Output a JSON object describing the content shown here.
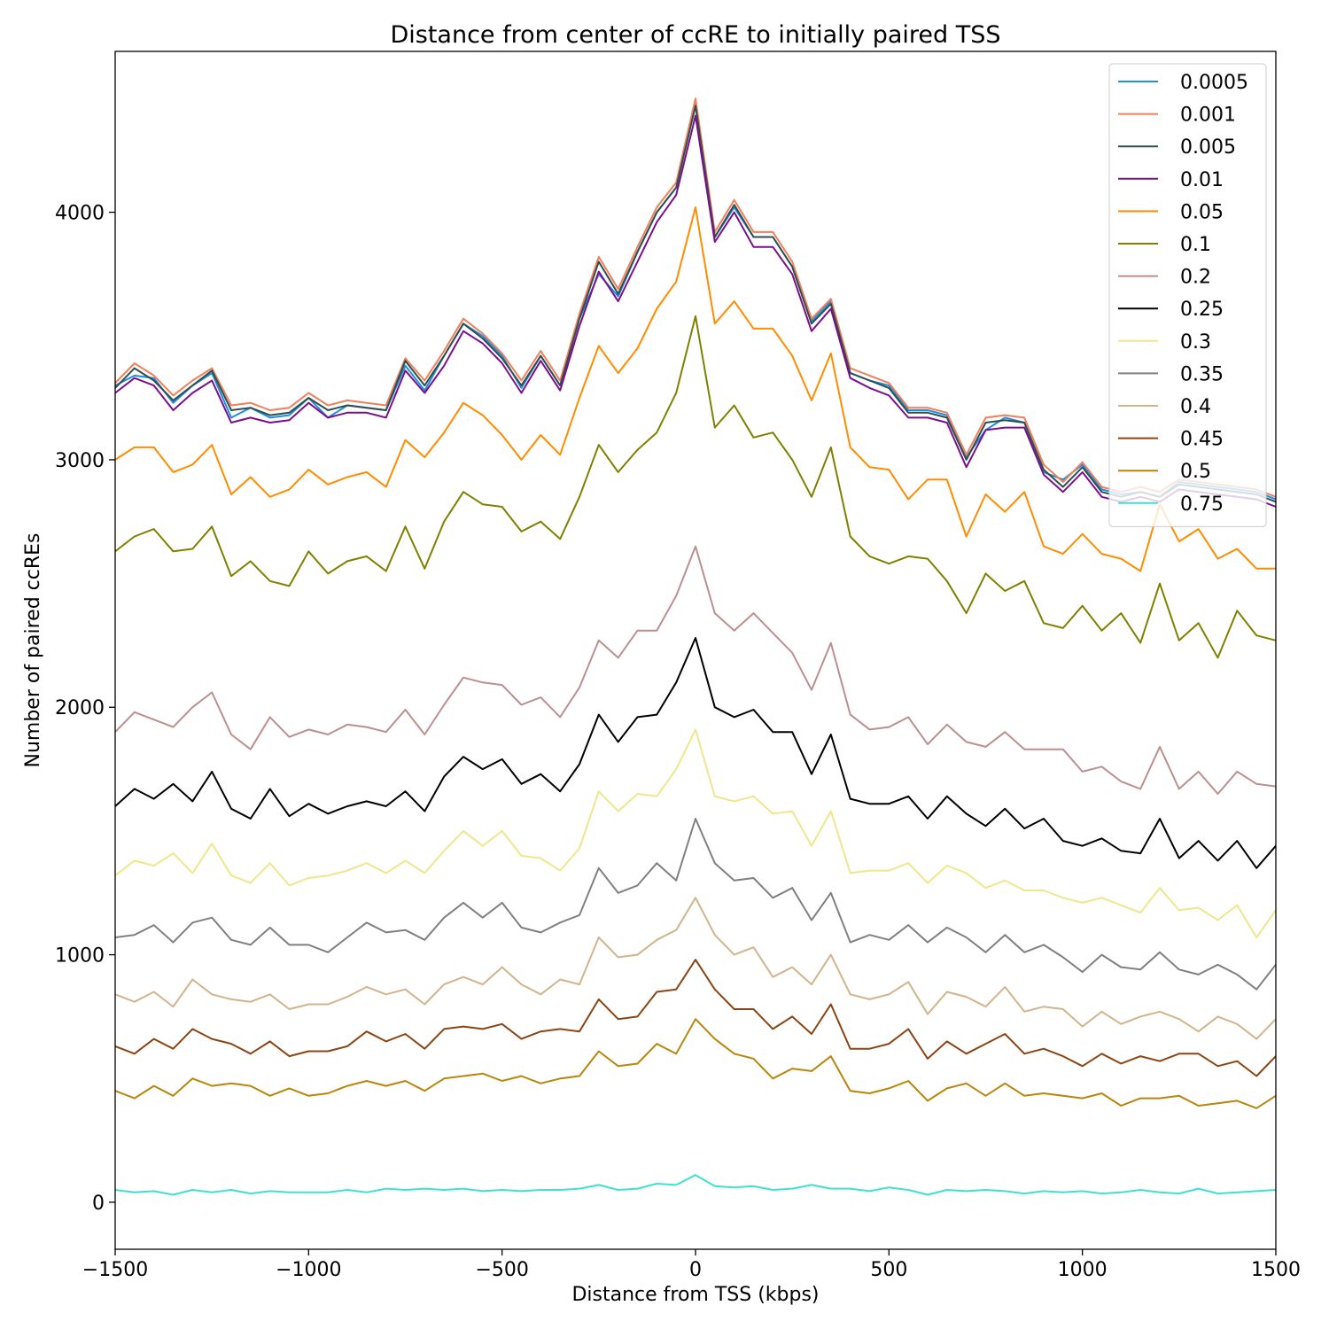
{
  "chart_data": {
    "type": "line",
    "title": "Distance from center of ccRE to initially paired TSS",
    "xlabel": "Distance from TSS (kbps)",
    "ylabel": "Number of paired ccREs",
    "xlim": [
      -1500,
      1500
    ],
    "ylim": [
      -190,
      4650
    ],
    "xticks": [
      -1500,
      -1000,
      -500,
      0,
      500,
      1000,
      1500
    ],
    "xtick_labels": [
      "−1500",
      "−1000",
      "−500",
      "0",
      "500",
      "1000",
      "1500"
    ],
    "yticks": [
      0,
      1000,
      2000,
      3000,
      4000
    ],
    "ytick_labels": [
      "0",
      "1000",
      "2000",
      "3000",
      "4000"
    ],
    "grid": false,
    "legend_position": "top-right",
    "x": [
      -1500,
      -1450,
      -1400,
      -1350,
      -1300,
      -1250,
      -1200,
      -1150,
      -1100,
      -1050,
      -1000,
      -950,
      -900,
      -850,
      -800,
      -750,
      -700,
      -650,
      -600,
      -550,
      -500,
      -450,
      -400,
      -350,
      -300,
      -250,
      -200,
      -150,
      -100,
      -50,
      0,
      50,
      100,
      150,
      200,
      250,
      300,
      350,
      400,
      450,
      500,
      550,
      600,
      650,
      700,
      750,
      800,
      850,
      900,
      950,
      1000,
      1050,
      1100,
      1150,
      1200,
      1250,
      1300,
      1350,
      1400,
      1450,
      1500
    ],
    "series": [
      {
        "name": "0.0005",
        "color": "#1f8fe0",
        "values": [
          3300,
          3340,
          3330,
          3230,
          3300,
          3350,
          3170,
          3210,
          3170,
          3180,
          3250,
          3170,
          3220,
          3210,
          3200,
          3380,
          3280,
          3420,
          3550,
          3500,
          3420,
          3290,
          3420,
          3300,
          3570,
          3750,
          3660,
          3840,
          4000,
          4100,
          4440,
          3900,
          4020,
          3900,
          3900,
          3780,
          3560,
          3640,
          3350,
          3320,
          3300,
          3200,
          3200,
          3180,
          3010,
          3120,
          3170,
          3150,
          2950,
          2920,
          2980,
          2880,
          2860,
          2870,
          2850,
          2910,
          2900,
          2890,
          2880,
          2870,
          2840
        ]
      },
      {
        "name": "0.001",
        "color": "#f07f5a",
        "values": [
          3310,
          3390,
          3340,
          3260,
          3320,
          3370,
          3220,
          3230,
          3200,
          3210,
          3270,
          3220,
          3240,
          3230,
          3220,
          3410,
          3320,
          3440,
          3570,
          3510,
          3430,
          3320,
          3440,
          3320,
          3590,
          3820,
          3690,
          3860,
          4020,
          4120,
          4460,
          3920,
          4050,
          3920,
          3920,
          3800,
          3570,
          3650,
          3370,
          3340,
          3310,
          3210,
          3210,
          3190,
          3020,
          3170,
          3180,
          3170,
          2980,
          2910,
          2990,
          2890,
          2870,
          2890,
          2870,
          2920,
          2910,
          2900,
          2890,
          2880,
          2850
        ]
      },
      {
        "name": "0.005",
        "color": "#2f4f4f",
        "values": [
          3290,
          3370,
          3320,
          3240,
          3300,
          3360,
          3200,
          3210,
          3180,
          3190,
          3250,
          3200,
          3220,
          3210,
          3200,
          3400,
          3300,
          3420,
          3550,
          3490,
          3410,
          3300,
          3420,
          3300,
          3570,
          3800,
          3670,
          3840,
          4000,
          4100,
          4430,
          3900,
          4030,
          3900,
          3900,
          3780,
          3550,
          3630,
          3350,
          3320,
          3290,
          3190,
          3190,
          3170,
          3000,
          3150,
          3160,
          3150,
          2960,
          2890,
          2970,
          2870,
          2850,
          2870,
          2850,
          2900,
          2890,
          2880,
          2870,
          2860,
          2830
        ]
      },
      {
        "name": "0.01",
        "color": "#7b0f8c",
        "values": [
          3270,
          3330,
          3300,
          3200,
          3270,
          3320,
          3150,
          3170,
          3150,
          3160,
          3230,
          3170,
          3190,
          3190,
          3170,
          3360,
          3270,
          3380,
          3520,
          3470,
          3390,
          3270,
          3400,
          3280,
          3540,
          3760,
          3640,
          3800,
          3960,
          4070,
          4390,
          3880,
          4000,
          3860,
          3860,
          3750,
          3520,
          3610,
          3330,
          3290,
          3260,
          3170,
          3170,
          3150,
          2970,
          3120,
          3130,
          3130,
          2940,
          2870,
          2950,
          2850,
          2830,
          2850,
          2830,
          2880,
          2870,
          2860,
          2850,
          2840,
          2810
        ]
      },
      {
        "name": "0.05",
        "color": "#ff8c00",
        "values": [
          3000,
          3050,
          3050,
          2950,
          2980,
          3060,
          2860,
          2930,
          2850,
          2880,
          2960,
          2900,
          2930,
          2950,
          2890,
          3080,
          3010,
          3110,
          3230,
          3180,
          3100,
          3000,
          3100,
          3020,
          3250,
          3460,
          3350,
          3450,
          3610,
          3720,
          4020,
          3550,
          3640,
          3530,
          3530,
          3420,
          3240,
          3430,
          3050,
          2970,
          2960,
          2840,
          2920,
          2920,
          2690,
          2860,
          2790,
          2870,
          2650,
          2620,
          2700,
          2620,
          2600,
          2550,
          2820,
          2670,
          2720,
          2600,
          2640,
          2560,
          2560
        ]
      },
      {
        "name": "0.1",
        "color": "#808000",
        "values": [
          2630,
          2690,
          2720,
          2630,
          2640,
          2730,
          2530,
          2590,
          2510,
          2490,
          2630,
          2540,
          2590,
          2610,
          2550,
          2730,
          2560,
          2750,
          2870,
          2820,
          2810,
          2710,
          2750,
          2680,
          2850,
          3060,
          2950,
          3040,
          3110,
          3270,
          3580,
          3130,
          3220,
          3090,
          3110,
          3000,
          2850,
          3050,
          2690,
          2610,
          2580,
          2610,
          2600,
          2510,
          2380,
          2540,
          2470,
          2510,
          2340,
          2320,
          2410,
          2310,
          2380,
          2260,
          2500,
          2270,
          2340,
          2200,
          2390,
          2290,
          2270
        ]
      },
      {
        "name": "0.2",
        "color": "#bc8f8f",
        "values": [
          1900,
          1980,
          1950,
          1920,
          2000,
          2060,
          1890,
          1830,
          1960,
          1880,
          1910,
          1890,
          1930,
          1920,
          1900,
          1990,
          1890,
          2010,
          2120,
          2100,
          2090,
          2010,
          2040,
          1960,
          2080,
          2270,
          2200,
          2310,
          2310,
          2450,
          2650,
          2380,
          2310,
          2380,
          2300,
          2220,
          2070,
          2260,
          1970,
          1910,
          1920,
          1960,
          1850,
          1930,
          1860,
          1840,
          1900,
          1830,
          1830,
          1830,
          1740,
          1760,
          1700,
          1670,
          1840,
          1670,
          1740,
          1650,
          1740,
          1690,
          1680
        ]
      },
      {
        "name": "0.25",
        "color": "#000000",
        "values": [
          1600,
          1670,
          1630,
          1690,
          1620,
          1740,
          1590,
          1550,
          1670,
          1560,
          1610,
          1570,
          1600,
          1620,
          1600,
          1660,
          1580,
          1720,
          1800,
          1750,
          1790,
          1690,
          1730,
          1660,
          1770,
          1970,
          1860,
          1960,
          1970,
          2100,
          2280,
          2000,
          1960,
          1990,
          1900,
          1900,
          1730,
          1890,
          1630,
          1610,
          1610,
          1640,
          1550,
          1640,
          1570,
          1520,
          1590,
          1510,
          1550,
          1460,
          1440,
          1470,
          1420,
          1410,
          1550,
          1390,
          1460,
          1380,
          1460,
          1350,
          1440
        ]
      },
      {
        "name": "0.3",
        "color": "#f0e68c",
        "values": [
          1320,
          1380,
          1360,
          1410,
          1330,
          1450,
          1320,
          1290,
          1370,
          1280,
          1310,
          1320,
          1340,
          1370,
          1330,
          1380,
          1330,
          1420,
          1500,
          1440,
          1500,
          1400,
          1390,
          1340,
          1430,
          1660,
          1580,
          1650,
          1640,
          1750,
          1910,
          1640,
          1620,
          1640,
          1570,
          1580,
          1440,
          1580,
          1330,
          1340,
          1340,
          1370,
          1290,
          1360,
          1330,
          1270,
          1300,
          1260,
          1260,
          1230,
          1210,
          1230,
          1200,
          1170,
          1270,
          1180,
          1190,
          1140,
          1200,
          1070,
          1180
        ]
      },
      {
        "name": "0.35",
        "color": "#808080",
        "values": [
          1070,
          1080,
          1120,
          1050,
          1130,
          1150,
          1060,
          1040,
          1110,
          1040,
          1040,
          1010,
          1070,
          1130,
          1090,
          1100,
          1060,
          1150,
          1210,
          1150,
          1210,
          1110,
          1090,
          1130,
          1160,
          1350,
          1250,
          1280,
          1370,
          1300,
          1550,
          1370,
          1300,
          1310,
          1230,
          1270,
          1140,
          1250,
          1050,
          1080,
          1060,
          1120,
          1050,
          1110,
          1070,
          1010,
          1080,
          1010,
          1040,
          990,
          930,
          1000,
          950,
          940,
          1010,
          940,
          920,
          960,
          920,
          860,
          960
        ]
      },
      {
        "name": "0.4",
        "color": "#d2b48c",
        "values": [
          840,
          810,
          850,
          790,
          900,
          840,
          820,
          810,
          840,
          780,
          800,
          800,
          830,
          870,
          840,
          860,
          800,
          880,
          910,
          880,
          950,
          880,
          840,
          900,
          880,
          1070,
          990,
          1000,
          1060,
          1100,
          1230,
          1080,
          1000,
          1030,
          910,
          950,
          880,
          1000,
          840,
          820,
          840,
          890,
          760,
          850,
          830,
          790,
          870,
          770,
          790,
          780,
          710,
          770,
          720,
          750,
          770,
          740,
          690,
          750,
          720,
          660,
          740
        ]
      },
      {
        "name": "0.45",
        "color": "#8b4513",
        "values": [
          630,
          600,
          660,
          620,
          700,
          660,
          640,
          600,
          650,
          590,
          610,
          610,
          630,
          690,
          650,
          680,
          620,
          700,
          710,
          700,
          720,
          660,
          690,
          700,
          690,
          820,
          740,
          750,
          850,
          860,
          980,
          860,
          780,
          780,
          700,
          750,
          680,
          800,
          620,
          620,
          640,
          700,
          580,
          650,
          600,
          640,
          680,
          600,
          620,
          590,
          550,
          600,
          560,
          590,
          570,
          600,
          600,
          550,
          570,
          510,
          590
        ]
      },
      {
        "name": "0.5",
        "color": "#b8860b",
        "values": [
          450,
          420,
          470,
          430,
          500,
          470,
          480,
          470,
          430,
          460,
          430,
          440,
          470,
          490,
          470,
          490,
          450,
          500,
          510,
          520,
          490,
          510,
          480,
          500,
          510,
          610,
          550,
          560,
          640,
          600,
          740,
          660,
          600,
          580,
          500,
          540,
          530,
          590,
          450,
          440,
          460,
          490,
          410,
          460,
          480,
          430,
          480,
          430,
          440,
          430,
          420,
          440,
          390,
          420,
          420,
          430,
          390,
          400,
          410,
          380,
          430
        ]
      },
      {
        "name": "0.75",
        "color": "#40e0d0",
        "values": [
          50,
          40,
          45,
          30,
          50,
          40,
          50,
          35,
          45,
          40,
          40,
          40,
          50,
          40,
          55,
          50,
          55,
          50,
          55,
          45,
          50,
          45,
          50,
          50,
          55,
          70,
          50,
          55,
          75,
          70,
          110,
          65,
          60,
          65,
          50,
          55,
          70,
          55,
          55,
          45,
          60,
          50,
          30,
          50,
          45,
          50,
          45,
          35,
          45,
          40,
          45,
          35,
          40,
          50,
          40,
          35,
          55,
          35,
          40,
          45,
          50
        ]
      }
    ]
  }
}
